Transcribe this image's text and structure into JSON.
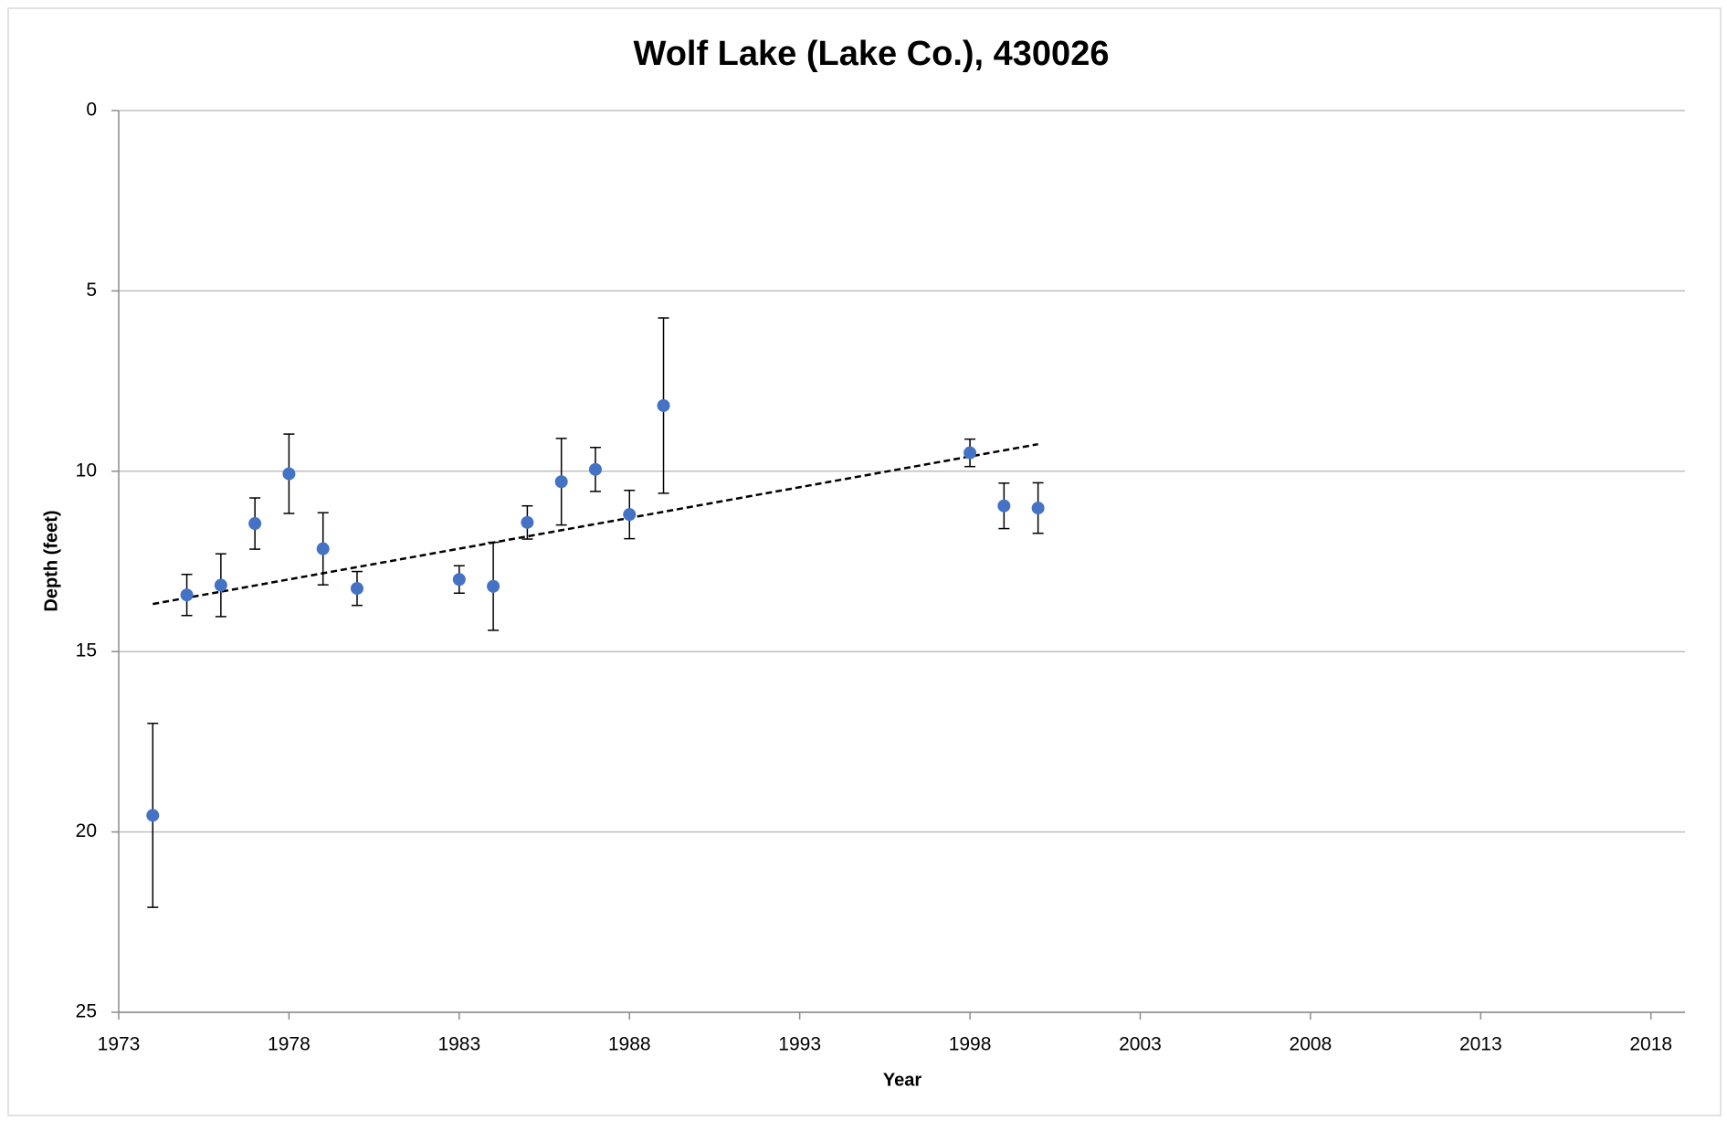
{
  "chart_data": {
    "type": "scatter",
    "title": "Wolf Lake (Lake Co.), 430026",
    "x_label": "Year",
    "y_label": "Depth (feet)",
    "x": [
      1974,
      1975,
      1976,
      1977,
      1978,
      1979,
      1980,
      1983,
      1984,
      1985,
      1986,
      1987,
      1988,
      1989,
      1998,
      1999,
      2000
    ],
    "series": [
      {
        "color": "#4472c4",
        "values": [
          19.54,
          13.43,
          13.16,
          11.45,
          10.07,
          12.15,
          13.25,
          13.0,
          13.19,
          11.42,
          10.29,
          9.95,
          11.2,
          8.18,
          9.49,
          10.96,
          11.02
        ],
        "errors": [
          2.55,
          0.57,
          0.87,
          0.71,
          1.1,
          1.0,
          0.47,
          0.38,
          1.22,
          0.46,
          1.2,
          0.61,
          0.67,
          2.43,
          0.38,
          0.63,
          0.7
        ]
      }
    ],
    "trendline": {
      "x": [
        1974,
        2000
      ],
      "values": [
        13.68,
        9.25
      ],
      "color": "#000000"
    },
    "xlim": [
      1973,
      2019
    ],
    "xticks": [
      1973,
      1978,
      1983,
      1988,
      1993,
      1998,
      2003,
      2008,
      2013,
      2018
    ],
    "ylim": [
      0,
      25
    ],
    "yticks": [
      0,
      5,
      10,
      15,
      20,
      25
    ],
    "y_inverted": true,
    "grid": true
  }
}
